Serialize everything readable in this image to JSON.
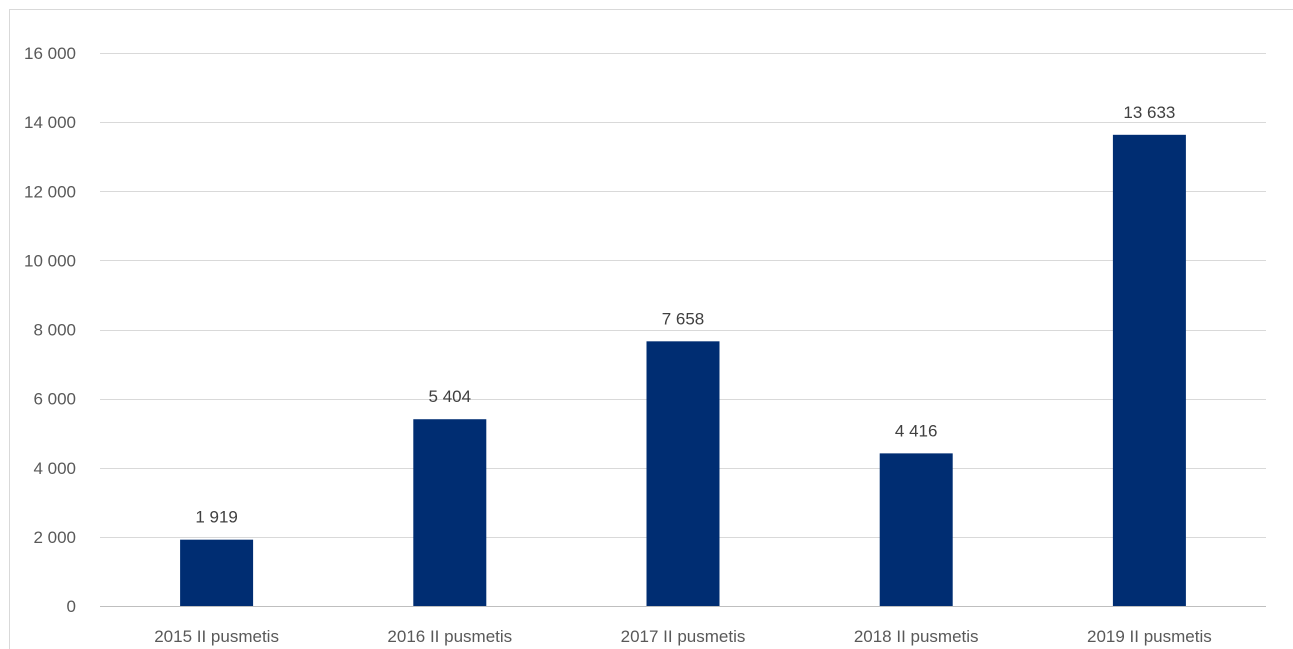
{
  "chart_data": {
    "type": "bar",
    "categories": [
      "2015 II pusmetis",
      "2016 II pusmetis",
      "2017 II pusmetis",
      "2018 II pusmetis",
      "2019 II pusmetis"
    ],
    "values": [
      1919,
      5404,
      7658,
      4416,
      13633
    ],
    "value_labels": [
      "1 919",
      "5 404",
      "7 658",
      "4 416",
      "13 633"
    ],
    "yticks": [
      0,
      2000,
      4000,
      6000,
      8000,
      10000,
      12000,
      14000,
      16000
    ],
    "ytick_labels": [
      "0",
      "2 000",
      "4 000",
      "6 000",
      "8 000",
      "10 000",
      "12 000",
      "14 000",
      "16 000"
    ],
    "ylim": [
      0,
      16000
    ],
    "grid": true,
    "legend": "none",
    "bar_color": "#002D72",
    "title": "",
    "xlabel": "",
    "ylabel": ""
  }
}
